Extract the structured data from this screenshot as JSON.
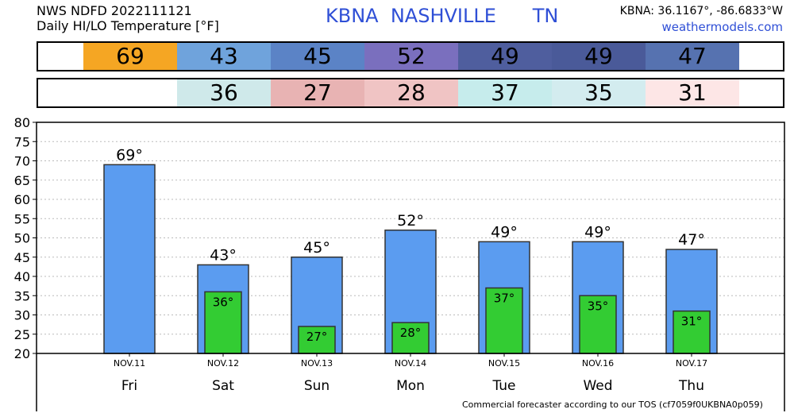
{
  "header": {
    "line1": "NWS NDFD 2022111121",
    "line2": "Daily HI/LO Temperature [°F]",
    "station_code": "KBNA",
    "station_name": "NASHVILLE",
    "state": "TN",
    "coords": "KBNA: 36.1167°, -86.6833°W",
    "site": "weathermodels.com"
  },
  "hi_strip": [
    {
      "value": "69",
      "color": "#f5a623"
    },
    {
      "value": "43",
      "color": "#6fa3dc"
    },
    {
      "value": "45",
      "color": "#5b83c6"
    },
    {
      "value": "52",
      "color": "#7a6fbe"
    },
    {
      "value": "49",
      "color": "#4f5e9e"
    },
    {
      "value": "49",
      "color": "#4a5a99"
    },
    {
      "value": "47",
      "color": "#5672b0"
    }
  ],
  "lo_strip": [
    {
      "value": "",
      "color": "#ffffff"
    },
    {
      "value": "36",
      "color": "#cfe9ea"
    },
    {
      "value": "27",
      "color": "#e8b3b3"
    },
    {
      "value": "28",
      "color": "#f0c4c4"
    },
    {
      "value": "37",
      "color": "#c6ecec"
    },
    {
      "value": "35",
      "color": "#d3ecef"
    },
    {
      "value": "31",
      "color": "#fde6e6"
    }
  ],
  "chart_data": {
    "type": "bar",
    "categories": [
      "NOV.11",
      "NOV.12",
      "NOV.13",
      "NOV.14",
      "NOV.15",
      "NOV.16",
      "NOV.17"
    ],
    "days": [
      "Fri",
      "Sat",
      "Sun",
      "Mon",
      "Tue",
      "Wed",
      "Thu"
    ],
    "series": [
      {
        "values": [
          69,
          43,
          45,
          52,
          49,
          49,
          47
        ],
        "labels": [
          "69°",
          "43°",
          "45°",
          "52°",
          "49°",
          "49°",
          "47°"
        ],
        "color": "#5b9cf0"
      },
      {
        "values": [
          null,
          36,
          27,
          28,
          37,
          35,
          31
        ],
        "labels": [
          "",
          "36°",
          "27°",
          "28°",
          "37°",
          "35°",
          "31°"
        ],
        "color": "#33cc33"
      }
    ],
    "ylim": [
      20,
      80
    ],
    "yticks": [
      "20",
      "25",
      "30",
      "35",
      "40",
      "45",
      "50",
      "55",
      "60",
      "65",
      "70",
      "75",
      "80"
    ],
    "grid": true
  },
  "footer": "Commercial forecaster according to our TOS (cf7059f0UKBNA0p059)"
}
